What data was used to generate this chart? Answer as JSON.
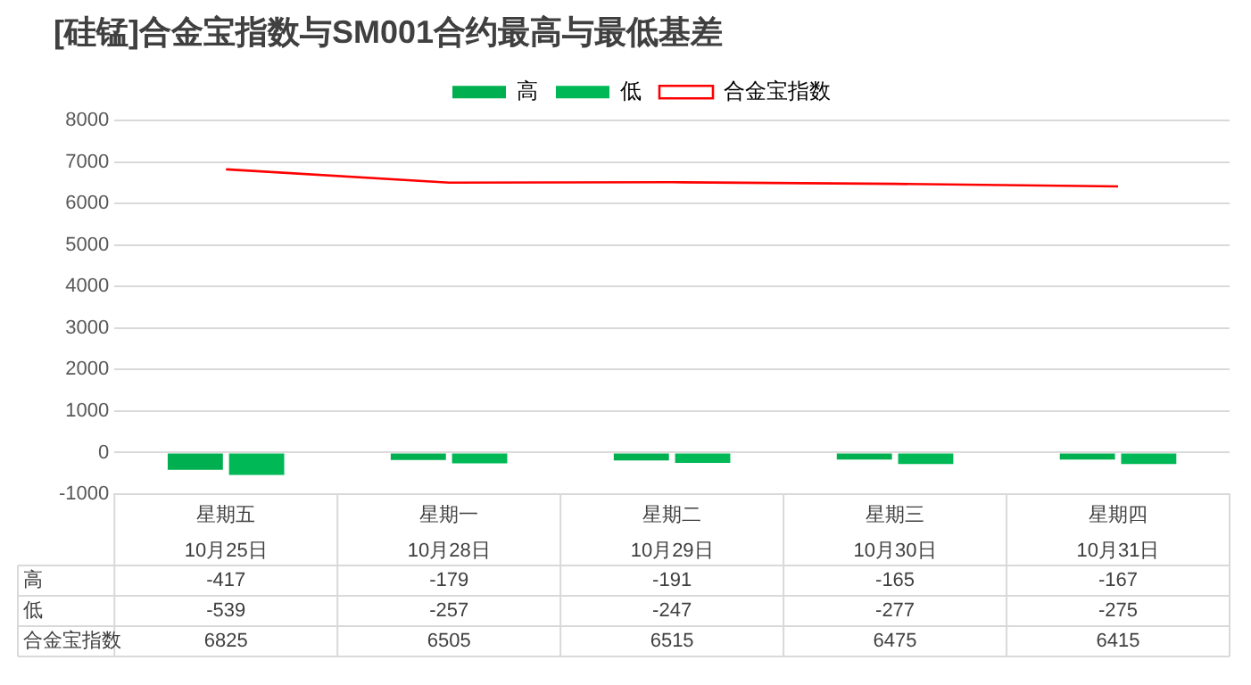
{
  "chart_data": {
    "type": "bar",
    "title": "[硅锰]合金宝指数与SM001合约最高与最低基差",
    "categories": [
      "星期五\n10月25日",
      "星期一\n10月28日",
      "星期二\n10月29日",
      "星期三\n10月30日",
      "星期四\n10月31日"
    ],
    "series": [
      {
        "name": "高",
        "color": "#00b050",
        "values": [
          -417,
          -179,
          -191,
          -165,
          -167
        ]
      },
      {
        "name": "低",
        "color": "#00b956",
        "values": [
          -539,
          -257,
          -247,
          -277,
          -275
        ]
      },
      {
        "name": "合金宝指数",
        "type": "line",
        "color": "#ff0000",
        "values": [
          6825,
          6505,
          6515,
          6475,
          6415
        ]
      }
    ],
    "ylim": [
      -1000,
      8000
    ],
    "yticks": [
      -1000,
      0,
      1000,
      2000,
      3000,
      4000,
      5000,
      6000,
      7000,
      8000
    ],
    "grid": "y",
    "legend": "top",
    "data_labels": true,
    "marker": "none"
  }
}
